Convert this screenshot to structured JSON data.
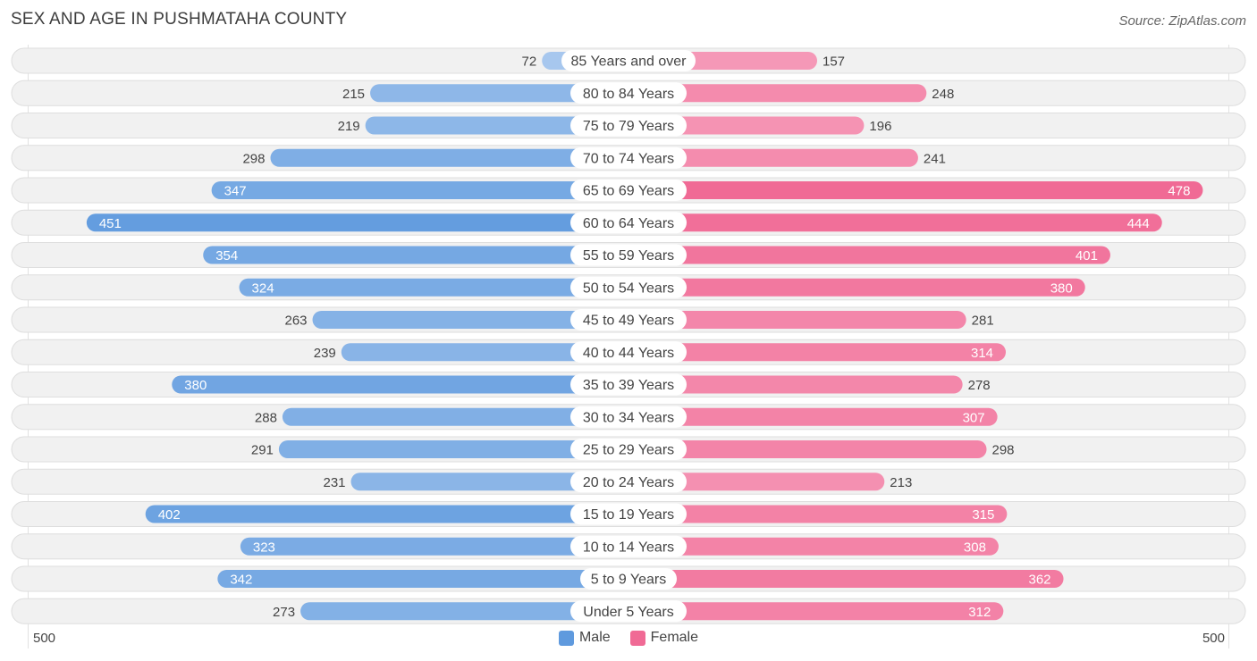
{
  "chart_data": {
    "type": "bar",
    "orientation": "horizontal-diverging",
    "title": "SEX AND AGE IN PUSHMATAHA COUNTY",
    "source": "Source: ZipAtlas.com",
    "categories": [
      "85 Years and over",
      "80 to 84 Years",
      "75 to 79 Years",
      "70 to 74 Years",
      "65 to 69 Years",
      "60 to 64 Years",
      "55 to 59 Years",
      "50 to 54 Years",
      "45 to 49 Years",
      "40 to 44 Years",
      "35 to 39 Years",
      "30 to 34 Years",
      "25 to 29 Years",
      "20 to 24 Years",
      "15 to 19 Years",
      "10 to 14 Years",
      "5 to 9 Years",
      "Under 5 Years"
    ],
    "series": [
      {
        "name": "Male",
        "values": [
          72,
          215,
          219,
          298,
          347,
          451,
          354,
          324,
          263,
          239,
          380,
          288,
          291,
          231,
          402,
          323,
          342,
          273
        ]
      },
      {
        "name": "Female",
        "values": [
          157,
          248,
          196,
          241,
          478,
          444,
          401,
          380,
          281,
          314,
          278,
          307,
          298,
          213,
          315,
          308,
          362,
          312
        ]
      }
    ],
    "xlim": [
      -500,
      500
    ],
    "axis_left_label": "500",
    "axis_right_label": "500",
    "legend_position": "bottom-center",
    "colors": {
      "male_light": "#a9c8ee",
      "male_dark": "#5f9ade",
      "female_light": "#f7a6c1",
      "female_dark": "#f06a95",
      "row_bg": "#f1f1f1",
      "row_border": "#dedede"
    }
  }
}
